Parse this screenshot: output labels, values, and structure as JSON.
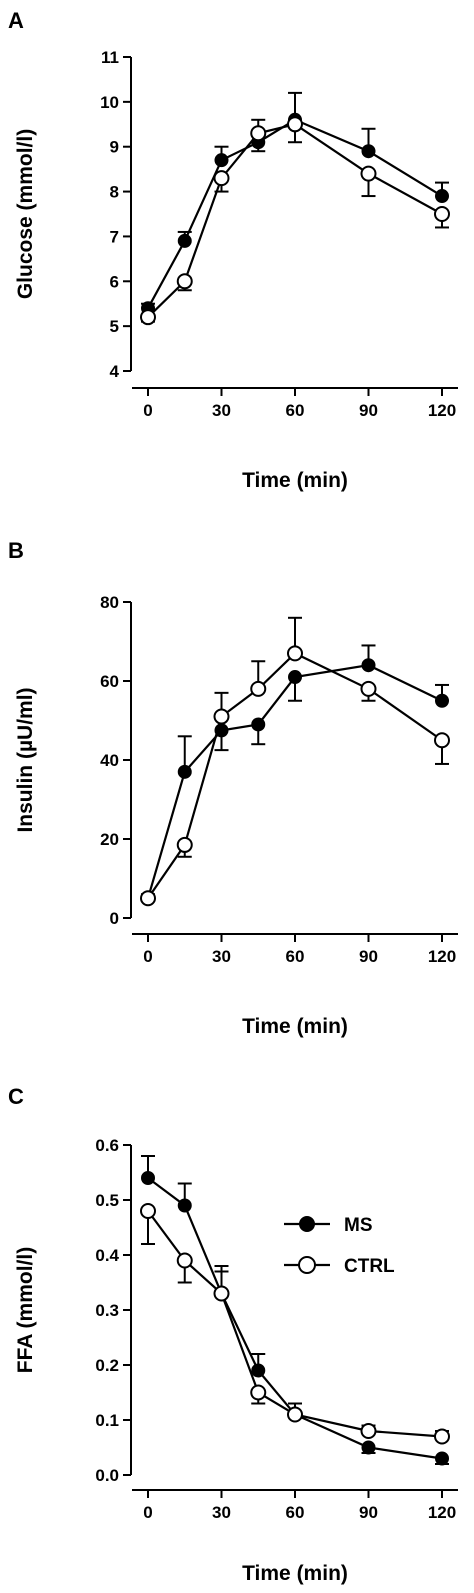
{
  "chart_data": [
    {
      "type": "line",
      "panel": "A",
      "xlabel": "Time (min)",
      "ylabel": "Glucose (mmol/l)",
      "x": [
        0,
        15,
        30,
        45,
        60,
        90,
        120
      ],
      "xticks": [
        0,
        30,
        60,
        90,
        120
      ],
      "ylim": [
        4,
        11
      ],
      "yticks": [
        4,
        5,
        6,
        7,
        8,
        9,
        10,
        11
      ],
      "yticklabels": [
        "4",
        "5",
        "6",
        "7",
        "8",
        "9",
        "10",
        "11"
      ],
      "series": [
        {
          "name": "MS",
          "marker": "filled",
          "values": [
            5.4,
            6.9,
            8.7,
            9.1,
            9.6,
            8.9,
            7.9
          ],
          "err": [
            0.1,
            0.2,
            0.3,
            0.2,
            0.6,
            0.5,
            0.3
          ]
        },
        {
          "name": "CTRL",
          "marker": "open",
          "values": [
            5.2,
            6.0,
            8.3,
            9.3,
            9.5,
            8.4,
            7.5
          ],
          "err": [
            0.1,
            0.2,
            0.3,
            0.3,
            0.4,
            0.5,
            0.3
          ]
        }
      ]
    },
    {
      "type": "line",
      "panel": "B",
      "xlabel": "Time (min)",
      "ylabel": "Insulin (µU/ml)",
      "x": [
        0,
        15,
        30,
        45,
        60,
        90,
        120
      ],
      "xticks": [
        0,
        30,
        60,
        90,
        120
      ],
      "ylim": [
        0,
        80
      ],
      "yticks": [
        0,
        20,
        40,
        60,
        80
      ],
      "yticklabels": [
        "0",
        "20",
        "40",
        "60",
        "80"
      ],
      "series": [
        {
          "name": "MS",
          "marker": "filled",
          "values": [
            5,
            37,
            47.5,
            49,
            61,
            64,
            55
          ],
          "err": [
            1,
            9,
            5,
            5,
            6,
            5,
            4
          ]
        },
        {
          "name": "CTRL",
          "marker": "open",
          "values": [
            5,
            18.5,
            51,
            58,
            67,
            58,
            45
          ],
          "err": [
            1,
            3,
            6,
            7,
            9,
            3,
            6
          ]
        }
      ]
    },
    {
      "type": "line",
      "panel": "C",
      "xlabel": "Time (min)",
      "ylabel": "FFA (mmol/l)",
      "x": [
        0,
        15,
        30,
        45,
        60,
        90,
        120
      ],
      "xticks": [
        0,
        30,
        60,
        90,
        120
      ],
      "ylim": [
        0,
        0.6
      ],
      "yticks": [
        0,
        0.1,
        0.2,
        0.3,
        0.4,
        0.5,
        0.6
      ],
      "yticklabels": [
        "0.0",
        "0.1",
        "0.2",
        "0.3",
        "0.4",
        "0.5",
        "0.6"
      ],
      "legend": {
        "position": "top-right",
        "entries": [
          "MS",
          "CTRL"
        ]
      },
      "series": [
        {
          "name": "MS",
          "marker": "filled",
          "values": [
            0.54,
            0.49,
            0.33,
            0.19,
            0.11,
            0.05,
            0.03
          ],
          "err": [
            0.04,
            0.04,
            0.05,
            0.03,
            0.02,
            0.01,
            0.01
          ]
        },
        {
          "name": "CTRL",
          "marker": "open",
          "values": [
            0.48,
            0.39,
            0.33,
            0.15,
            0.11,
            0.08,
            0.07
          ],
          "err": [
            0.06,
            0.04,
            0.04,
            0.02,
            0.02,
            0.01,
            0.01
          ]
        }
      ]
    }
  ]
}
